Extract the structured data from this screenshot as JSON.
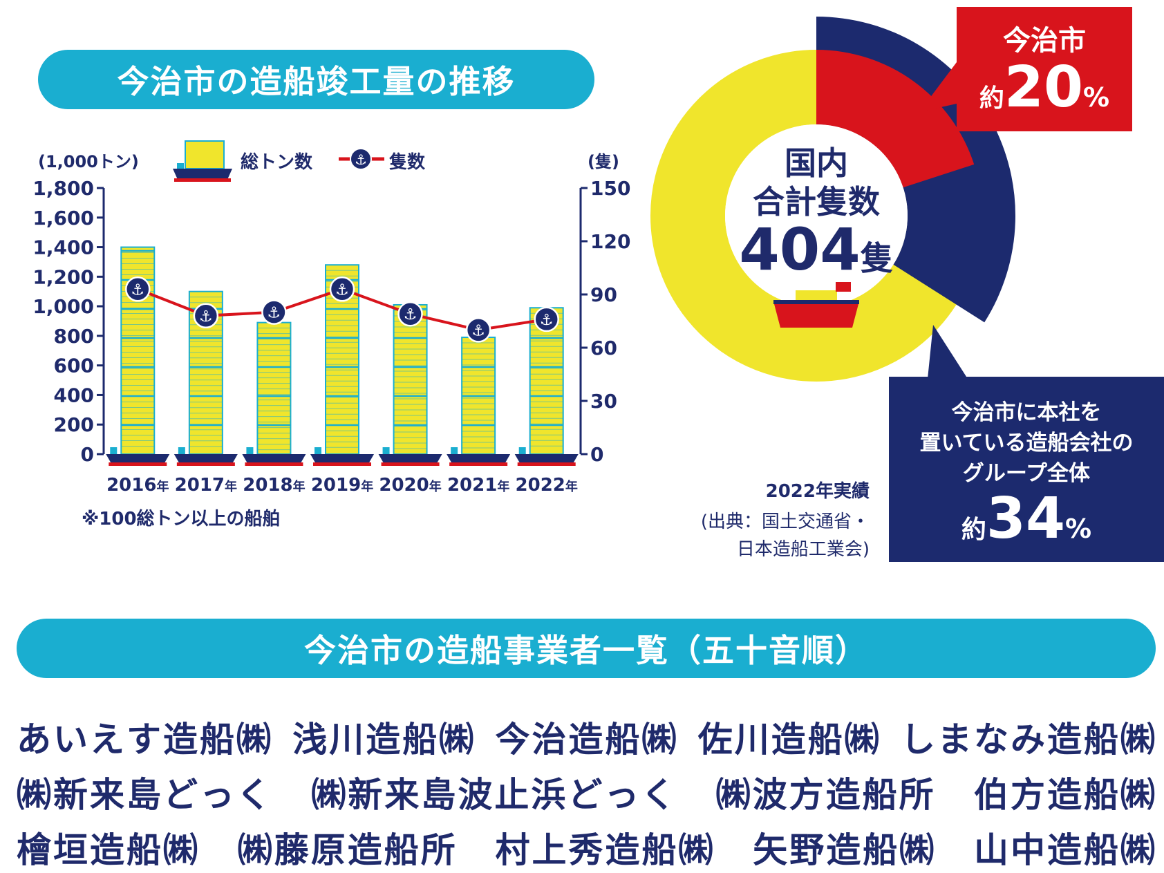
{
  "titles": {
    "chart": "今治市の造船竣工量の推移",
    "list": "今治市の造船事業者一覧（五十音順）"
  },
  "legend": {
    "bar_label": "総トン数",
    "line_label": "隻数",
    "unit_left": "(1,000トン)",
    "unit_right": "(隻)"
  },
  "note": "※100総トン以上の船舶",
  "donut": {
    "center_line1": "国内",
    "center_line2": "合計隻数",
    "center_value": "404",
    "center_unit": "隻",
    "basis": "2022年実績",
    "source_line1": "(出典：国土交通省・",
    "source_line2": "日本造船工業会)",
    "imabari": {
      "label": "今治市",
      "prefix": "約",
      "value": "20",
      "unit": "%"
    },
    "group": {
      "line1": "今治市に本社を",
      "line2": "置いている造船会社の",
      "line3": "グループ全体",
      "prefix": "約",
      "value": "34",
      "unit": "%"
    },
    "colors": {
      "imabari": "#d8141c",
      "group": "#1c2a6e",
      "other": "#f0e52c"
    }
  },
  "chart_data": [
    {
      "type": "bar",
      "categories": [
        "2016年",
        "2017年",
        "2018年",
        "2019年",
        "2020年",
        "2021年",
        "2022年"
      ],
      "x_tick_labels": [
        {
          "year": "2016",
          "suffix": "年"
        },
        {
          "year": "2017",
          "suffix": "年"
        },
        {
          "year": "2018",
          "suffix": "年"
        },
        {
          "year": "2019",
          "suffix": "年"
        },
        {
          "year": "2020",
          "suffix": "年"
        },
        {
          "year": "2021",
          "suffix": "年"
        },
        {
          "year": "2022",
          "suffix": "年"
        }
      ],
      "series": [
        {
          "name": "総トン数",
          "axis": "left",
          "type": "bar",
          "values": [
            1400,
            1100,
            890,
            1280,
            1010,
            790,
            990
          ]
        },
        {
          "name": "隻数",
          "axis": "right",
          "type": "line",
          "values": [
            93,
            78,
            80,
            93,
            79,
            70,
            76
          ]
        }
      ],
      "ylim_left": [
        0,
        1800
      ],
      "yticks_left": [
        "0",
        "200",
        "400",
        "600",
        "800",
        "1,000",
        "1,200",
        "1,400",
        "1,600",
        "1,800"
      ],
      "ylim_right": [
        0,
        150
      ],
      "yticks_right": [
        "0",
        "30",
        "60",
        "90",
        "120",
        "150"
      ],
      "ylabel_left": "(1,000トン)",
      "ylabel_right": "(隻)",
      "colors": {
        "bar": "#f0e52c",
        "bar_stripe": "#1aaed0",
        "line": "#d8141c",
        "marker": "#1c2a6e"
      }
    },
    {
      "type": "pie",
      "labels": [
        "今治市",
        "今治市に本社を置いている造船会社のグループ全体"
      ],
      "values": [
        20,
        34
      ],
      "unit": "%",
      "total_value": 404
    }
  ],
  "companies": [
    [
      "あいえす造船㈱",
      "浅川造船㈱",
      "今治造船㈱",
      "佐川造船㈱",
      "しまなみ造船㈱"
    ],
    [
      "㈱新来島どっく",
      "㈱新来島波止浜どっく",
      "㈱波方造船所",
      "伯方造船㈱"
    ],
    [
      "檜垣造船㈱",
      "㈱藤原造船所",
      "村上秀造船㈱",
      "矢野造船㈱",
      "山中造船㈱"
    ]
  ]
}
